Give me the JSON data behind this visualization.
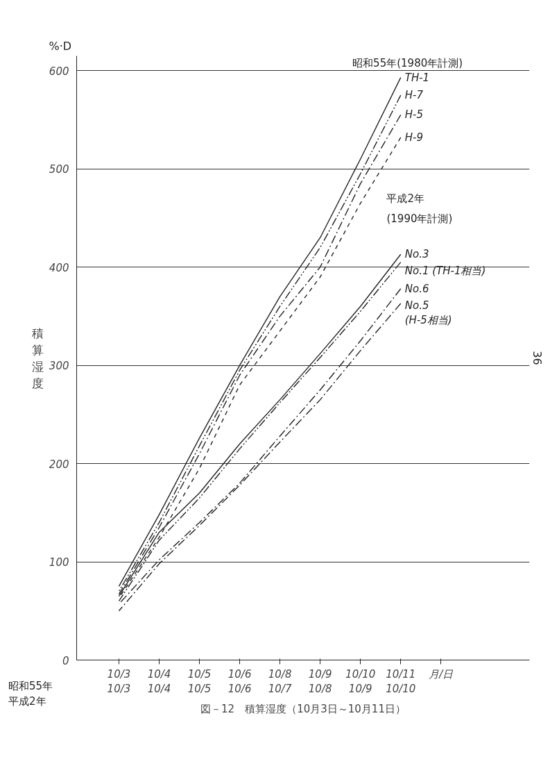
{
  "chart_data": {
    "type": "line",
    "title": "図－12　積算湿度（10月3日～10月11日）",
    "ylabel": "積算湿度",
    "categories": [
      "10/3\n10/3",
      "10/4\n10/4",
      "10/5\n10/5",
      "10/6\n10/6",
      "10/8\n10/7",
      "10/9\n10/8",
      "10/10\n10/9",
      "10/11\n10/10",
      "月/日"
    ],
    "series": [
      {
        "name": "TH-1",
        "color": "#222222",
        "line_style": "solid",
        "values": [
          75,
          148,
          226,
          300,
          370,
          430,
          510,
          593,
          null
        ]
      },
      {
        "name": "H-7",
        "color": "#222222",
        "line_style": "dotdash",
        "values": [
          70,
          140,
          218,
          295,
          360,
          420,
          495,
          575,
          null
        ]
      },
      {
        "name": "H-5",
        "color": "#222222",
        "line_style": "dashdot",
        "values": [
          67,
          135,
          210,
          290,
          350,
          400,
          485,
          555,
          null
        ]
      },
      {
        "name": "H-9",
        "color": "#222222",
        "line_style": "dashed",
        "values": [
          63,
          125,
          195,
          280,
          335,
          390,
          465,
          532,
          null
        ]
      },
      {
        "name": "No.3",
        "color": "#222222",
        "line_style": "solid",
        "values": [
          65,
          130,
          170,
          220,
          265,
          312,
          360,
          413,
          null
        ]
      },
      {
        "name": "No.1 (TH-1相当)",
        "color": "#222222",
        "line_style": "dotdash",
        "values": [
          60,
          122,
          165,
          215,
          262,
          308,
          355,
          405,
          null
        ]
      },
      {
        "name": "No.6",
        "color": "#222222",
        "line_style": "dashdot",
        "values": [
          57,
          102,
          140,
          180,
          228,
          275,
          325,
          378,
          null
        ]
      },
      {
        "name": "No.5\n(H-5相当)",
        "color": "#222222",
        "line_style": "dashdot",
        "values": [
          50,
          98,
          137,
          178,
          222,
          265,
          315,
          363,
          null
        ]
      }
    ],
    "ylim": [
      0,
      615
    ],
    "yticks": [
      0,
      100,
      200,
      300,
      400,
      500,
      600
    ],
    "grid": "y",
    "marker": "none",
    "annotations": [
      "昭和55年(1980年計測)",
      "平成2年\n(1990年計測)",
      "昭和55年",
      "平成2年",
      "%·D",
      "36"
    ]
  }
}
